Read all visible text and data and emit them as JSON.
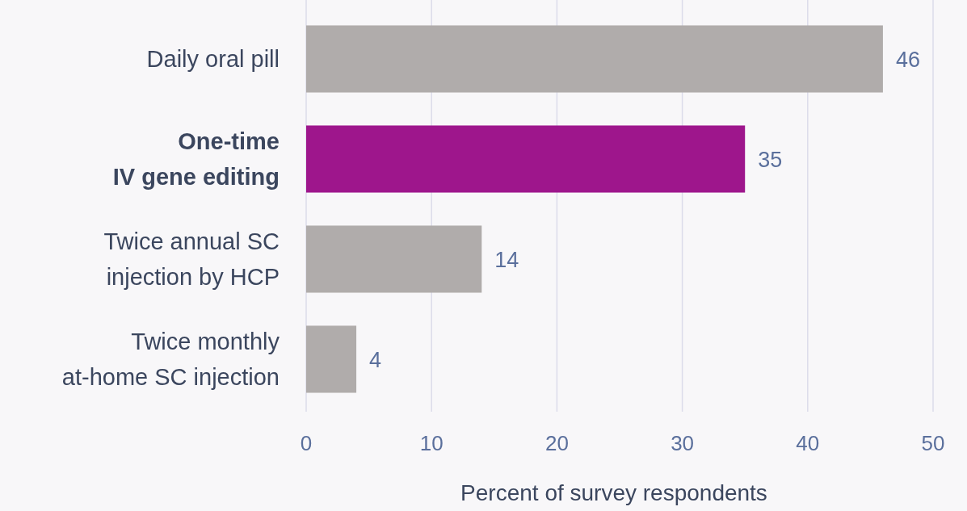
{
  "chart_data": {
    "type": "bar",
    "orientation": "horizontal",
    "categories": [
      "Daily oral pill",
      "One-time\nIV gene editing",
      "Twice annual SC\ninjection by HCP",
      "Twice monthly\nat-home SC injection"
    ],
    "values": [
      46,
      35,
      14,
      4
    ],
    "colors": [
      "#b0acab",
      "#9e168c",
      "#b0acab",
      "#b0acab"
    ],
    "xlabel": "Percent of survey respondents",
    "xlim": [
      0,
      50
    ],
    "xticks": [
      0,
      10,
      20,
      30,
      40,
      50
    ],
    "grid": "x",
    "data_labels": true
  }
}
